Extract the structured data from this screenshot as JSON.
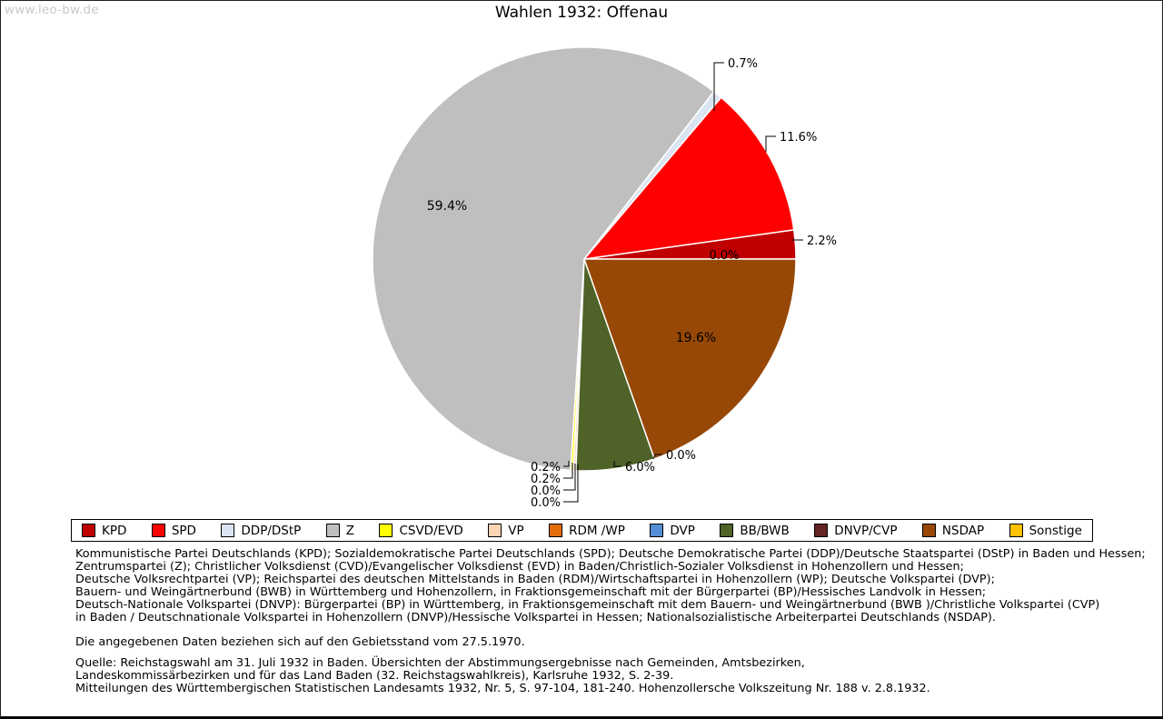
{
  "watermark": "www.leo-bw.de",
  "title": "Wahlen 1932: Offenau",
  "chart_data": {
    "type": "pie",
    "title": "Wahlen 1932: Offenau",
    "start_angle_deg": 0,
    "direction": "counterclockwise",
    "legend_position": "bottom",
    "slices": [
      {
        "party": "KPD",
        "value": 2.2,
        "label": "2.2%",
        "color": "#c00000"
      },
      {
        "party": "SPD",
        "value": 11.6,
        "label": "11.6%",
        "color": "#ff0000"
      },
      {
        "party": "DDP/DStP",
        "value": 0.7,
        "label": "0.7%",
        "color": "#dbe5f1"
      },
      {
        "party": "Z",
        "value": 59.4,
        "label": "59.4%",
        "color": "#bfbfbf"
      },
      {
        "party": "CSVD/EVD",
        "value": 0.2,
        "label": "0.2%",
        "color": "#ffff00"
      },
      {
        "party": "VP",
        "value": 0.2,
        "label": "0.2%",
        "color": "#fcd5b4"
      },
      {
        "party": "RDM /WP",
        "value": 0.0,
        "label": "0.0%",
        "color": "#e36c0a"
      },
      {
        "party": "DVP",
        "value": 0.0,
        "label": "0.0%",
        "color": "#558ed5"
      },
      {
        "party": "BB/BWB",
        "value": 6.0,
        "label": "6.0%",
        "color": "#4f6228"
      },
      {
        "party": "DNVP/CVP",
        "value": 0.0,
        "label": "0.0%",
        "color": "#632423"
      },
      {
        "party": "NSDAP",
        "value": 19.6,
        "label": "19.6%",
        "color": "#974806"
      },
      {
        "party": "Sonstige",
        "value": 0.0,
        "label": "0.0%",
        "color": "#ffc000"
      }
    ]
  },
  "footnotes": {
    "party_key_lines": [
      "Kommunistische Partei Deutschlands (KPD); Sozialdemokratische Partei Deutschlands (SPD); Deutsche Demokratische Partei (DDP)/Deutsche Staatspartei (DStP) in Baden und Hessen;",
      "Zentrumspartei (Z); Christlicher Volksdienst (CVD)/Evangelischer Volksdienst (EVD) in Baden/Christlich-Sozialer Volksdienst in Hohenzollern und Hessen;",
      "Deutsche Volksrechtpartei (VP); Reichspartei des deutschen Mittelstands in Baden (RDM)/Wirtschaftspartei in Hohenzollern (WP); Deutsche Volkspartei (DVP);",
      "Bauern- und Weingärtnerbund (BWB) in Württemberg und Hohenzollern, in Fraktionsgemeinschaft mit der Bürgerpartei (BP)/Hessisches Landvolk in Hessen;",
      "Deutsch-Nationale Volkspartei (DNVP): Bürgerpartei (BP) in Württemberg, in Fraktionsgemeinschaft mit dem Bauern- und Weingärtnerbund (BWB )/Christliche Volkspartei (CVP)",
      "in Baden / Deutschnationale Volkspartei in Hohenzollern (DNVP)/Hessische Volkspartei in Hessen; Nationalsozialistische Arbeiterpartei Deutschlands (NSDAP)."
    ],
    "note": "Die angegebenen Daten beziehen sich auf den Gebietsstand vom 27.5.1970.",
    "source_lines": [
      "Quelle: Reichstagswahl am 31. Juli 1932 in Baden. Übersichten der Abstimmungsergebnisse nach Gemeinden, Amtsbezirken,",
      "Landeskommissärbezirken und für das Land Baden (32. Reichstagswahlkreis), Karlsruhe 1932, S. 2-39.",
      "Mitteilungen des Württembergischen Statistischen Landesamts 1932, Nr. 5, S. 97-104, 181-240. Hohenzollersche Volkszeitung Nr. 188 v. 2.8.1932."
    ]
  }
}
